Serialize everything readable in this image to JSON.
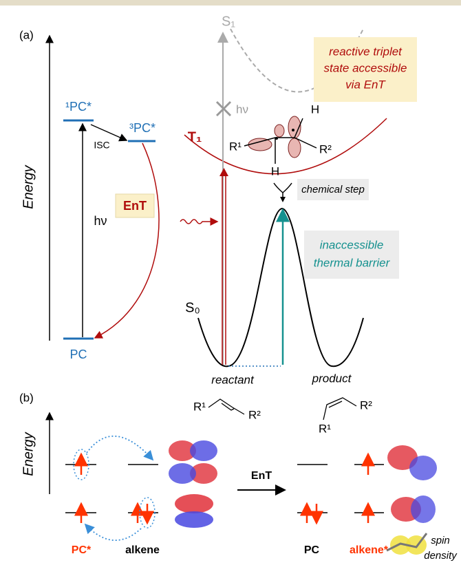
{
  "panel_a": {
    "label": "(a)",
    "energy_axis": "Energy",
    "levels": {
      "singlet": "¹PC*",
      "triplet": "³PC*",
      "ground": "PC"
    },
    "isc": "ISC",
    "excitation": "hν",
    "ent": "EnT",
    "states": {
      "s1": "S₁",
      "t1": "T₁",
      "s0": "S₀"
    },
    "blocked_excitation": "hν",
    "triplet_note": [
      "reactive triplet",
      "state accessible",
      "via EnT"
    ],
    "molecule": {
      "r1": "R¹",
      "r2": "R²",
      "h_top": "H",
      "h_bottom": "H"
    },
    "chemical_step": "chemical step",
    "barrier_note": [
      "inaccessible",
      "thermal barrier"
    ],
    "reactant": {
      "label": "reactant",
      "r1": "R¹",
      "r2": "R²"
    },
    "product": {
      "label": "product",
      "r1": "R¹",
      "r2": "R²"
    }
  },
  "panel_b": {
    "label": "(b)",
    "energy_axis": "Energy",
    "ent": "EnT",
    "labels": {
      "pc_star": "PC*",
      "alkene": "alkene",
      "pc": "PC",
      "alkene_star": "alkene*"
    },
    "spin_density": [
      "spin",
      "density"
    ]
  }
}
